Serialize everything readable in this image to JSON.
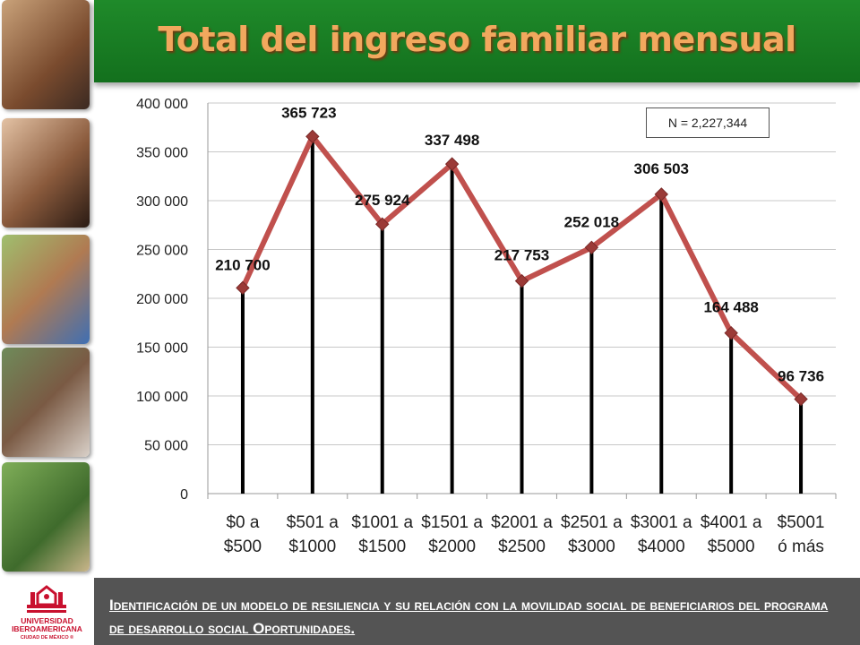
{
  "header": {
    "title": "Total del ingreso familiar mensual"
  },
  "annotation": "N = 2,227,344",
  "footer": {
    "text": "Identificación de un modelo de resiliencia y su relación con la movilidad social de beneficiarios del programa de desarrollo social Oportunidades.",
    "logo_name": "UNIVERSIDAD IBEROAMERICANA",
    "logo_city": "CIUDAD DE MÉXICO ®"
  },
  "colors": {
    "header_green": "#1a7f25",
    "title_orange": "#f2a85e",
    "line": "#c0504d",
    "marker": "#9b3a37",
    "drop_line": "#000000",
    "footer_gray": "#545454",
    "logo_red": "#c8102e"
  },
  "chart_data": {
    "type": "line",
    "categories": [
      [
        "$0 a",
        "$500"
      ],
      [
        "$501 a",
        "$1000"
      ],
      [
        "$1001 a",
        "$1500"
      ],
      [
        "$1501 a",
        "$2000"
      ],
      [
        "$2001 a",
        "$2500"
      ],
      [
        "$2501 a",
        "$3000"
      ],
      [
        "$3001 a",
        "$4000"
      ],
      [
        "$4001 a",
        "$5000"
      ],
      [
        "$5001",
        "ó más"
      ]
    ],
    "values": [
      210700,
      365723,
      275924,
      337498,
      217753,
      252018,
      306503,
      164488,
      96736
    ],
    "data_labels": [
      "210 700",
      "365 723",
      "275 924",
      "337 498",
      "217 753",
      "252 018",
      "306 503",
      "164 488",
      "96 736"
    ],
    "ylim": [
      0,
      400000
    ],
    "yticks": [
      0,
      50000,
      100000,
      150000,
      200000,
      250000,
      300000,
      350000,
      400000
    ],
    "ytick_labels": [
      "0",
      "50 000",
      "100 000",
      "150 000",
      "200 000",
      "250 000",
      "300 000",
      "350 000",
      "400 000"
    ],
    "grid": true,
    "drop_lines": true,
    "legend": "none"
  }
}
